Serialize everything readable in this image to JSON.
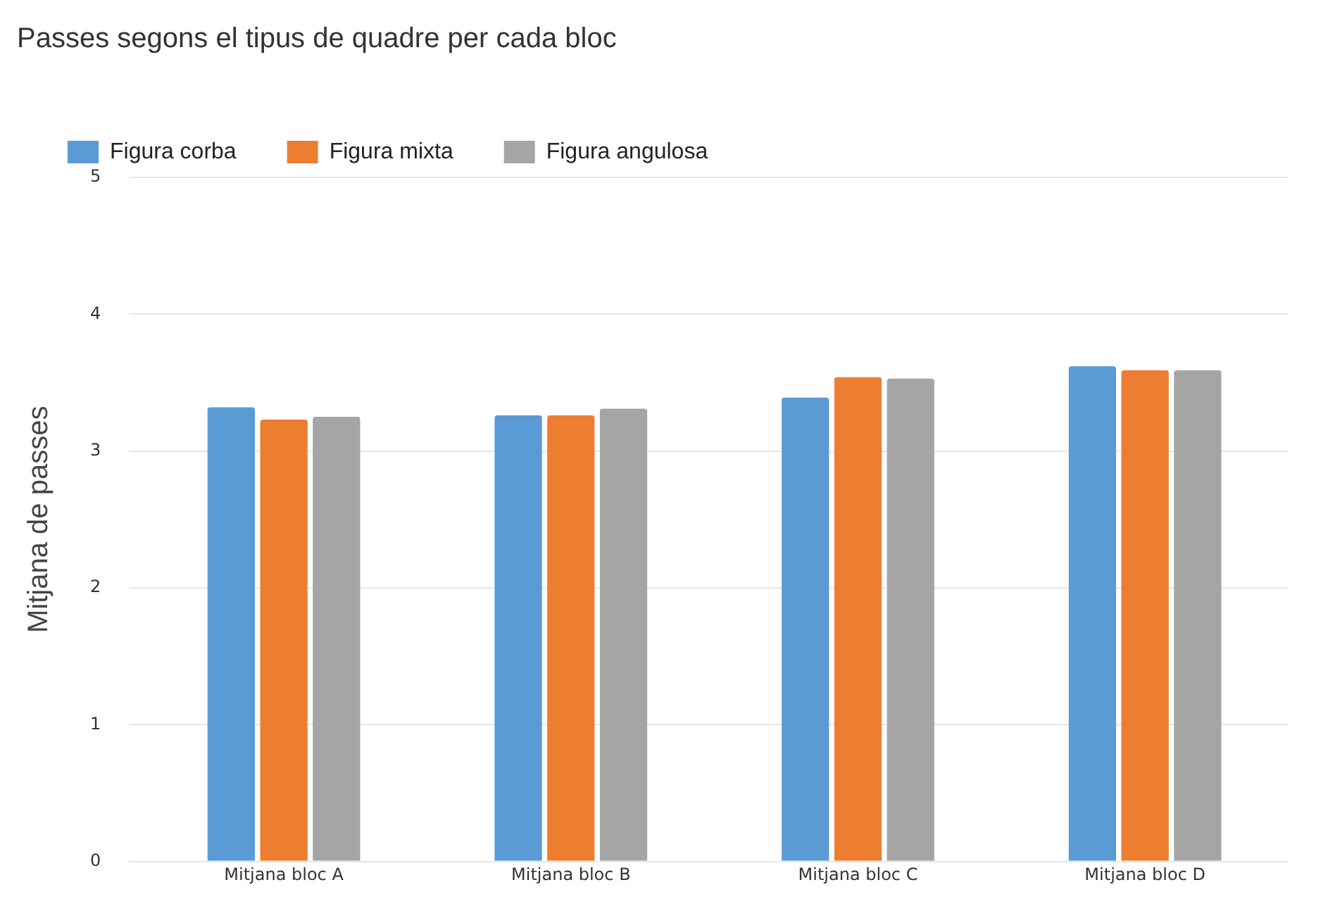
{
  "chart_data": {
    "type": "bar",
    "title": "Passes segons el tipus de quadre per cada bloc",
    "ylabel": "Mitjana de passes",
    "categories": [
      "Mitjana bloc A",
      "Mitjana bloc B",
      "Mitjana bloc C",
      "Mitjana bloc D"
    ],
    "series": [
      {
        "name": "Figura corba",
        "color": "#5b9bd5",
        "values": [
          3.32,
          3.26,
          3.39,
          3.62
        ]
      },
      {
        "name": "Figura mixta",
        "color": "#ed7d31",
        "values": [
          3.23,
          3.26,
          3.54,
          3.59
        ]
      },
      {
        "name": "Figura angulosa",
        "color": "#a5a5a5",
        "values": [
          3.25,
          3.31,
          3.53,
          3.59
        ]
      }
    ],
    "ylim": [
      0,
      5
    ],
    "yticks": [
      0,
      1,
      2,
      3,
      4,
      5
    ],
    "grid": "y",
    "legend": "top"
  }
}
